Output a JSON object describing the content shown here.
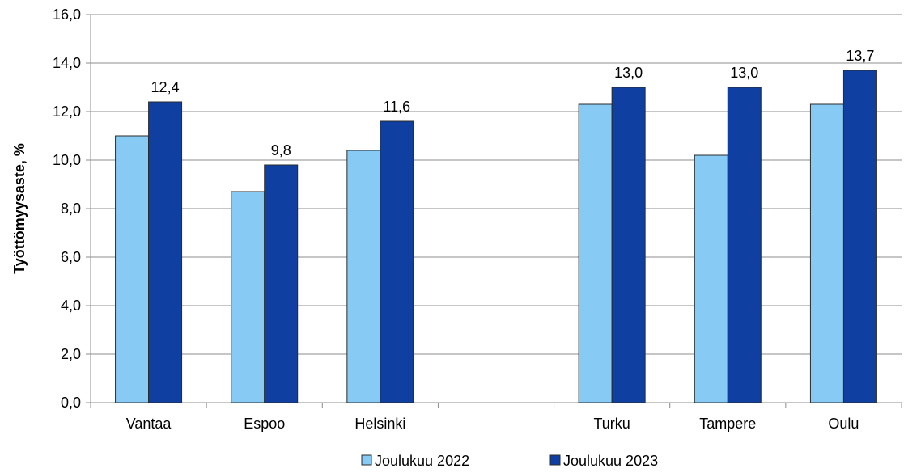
{
  "chart_data": {
    "type": "bar",
    "ylabel": "Työttömyysaste, %",
    "xlabel": "",
    "ylim": [
      0,
      16
    ],
    "yticks": [
      "0,0",
      "2,0",
      "4,0",
      "6,0",
      "8,0",
      "10,0",
      "12,0",
      "14,0",
      "16,0"
    ],
    "grid": true,
    "legend_position": "bottom",
    "categories": [
      "Vantaa",
      "Espoo",
      "Helsinki",
      "",
      "Turku",
      "Tampere",
      "Oulu"
    ],
    "series": [
      {
        "name": "Joulukuu 2022",
        "color": "#87CBF5",
        "values": [
          11.0,
          8.7,
          10.4,
          null,
          12.3,
          10.2,
          12.3
        ],
        "labels": [
          "",
          "",
          "",
          "",
          "",
          "",
          ""
        ]
      },
      {
        "name": "Joulukuu 2023",
        "color": "#0F3FA0",
        "values": [
          12.4,
          9.8,
          11.6,
          null,
          13.0,
          13.0,
          13.7
        ],
        "labels": [
          "12,4",
          "9,8",
          "11,6",
          "",
          "13,0",
          "13,0",
          "13,7"
        ]
      }
    ]
  }
}
